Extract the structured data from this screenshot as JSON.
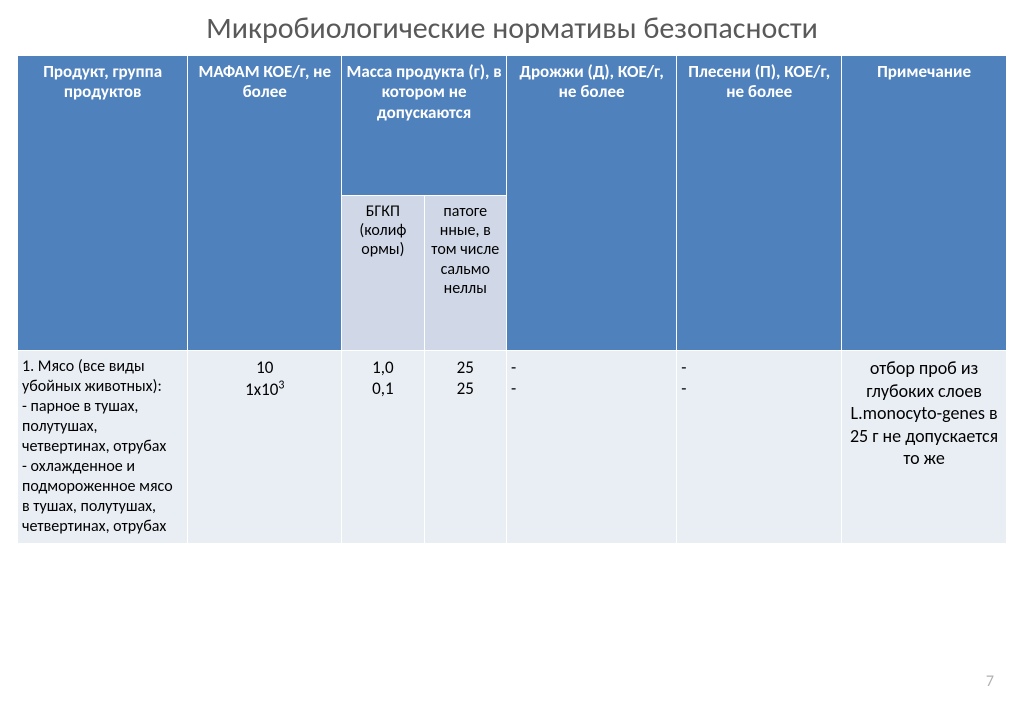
{
  "title": "Микробиологические нормативы безопасности",
  "columns": {
    "product": "Продукт, группа продуктов",
    "mafam": "МАФАМ КОЕ/г, не более",
    "mass": "Масса продукта (г), в котором не допускаются",
    "bgkp": "БГКП (колиф ормы)",
    "pathogen": "патоге нные, в том числе сальмо неллы",
    "yeast": "Дрожжи (Д), КОЕ/г, не более",
    "mold": "Плесени (П), КОЕ/г, не более",
    "note": "Примечание"
  },
  "row": {
    "product": "1. Мясо (все виды убойных животных):\n- парное в тушах, полутушах, четвертинах, отрубах\n- охлажденное и подмороженное мясо в тушах, полутушах, четвертинах, отрубах",
    "mafam_line1": "10",
    "mafam_line2_prefix": "1x10",
    "mafam_line2_sup": "3",
    "bgkp": "1,0\n0,1",
    "pathogen": "25\n25",
    "yeast": "-\n-",
    "mold": "-\n-",
    "note": "отбор проб из глубоких слоев\nL.monocyto-genes в 25 г не допускается\nто же"
  },
  "page_number": "7",
  "colors": {
    "header_bg": "#4f81bd",
    "subheader_bg": "#d0d8e8",
    "body_bg": "#e9edf4",
    "title_color": "#595959"
  }
}
